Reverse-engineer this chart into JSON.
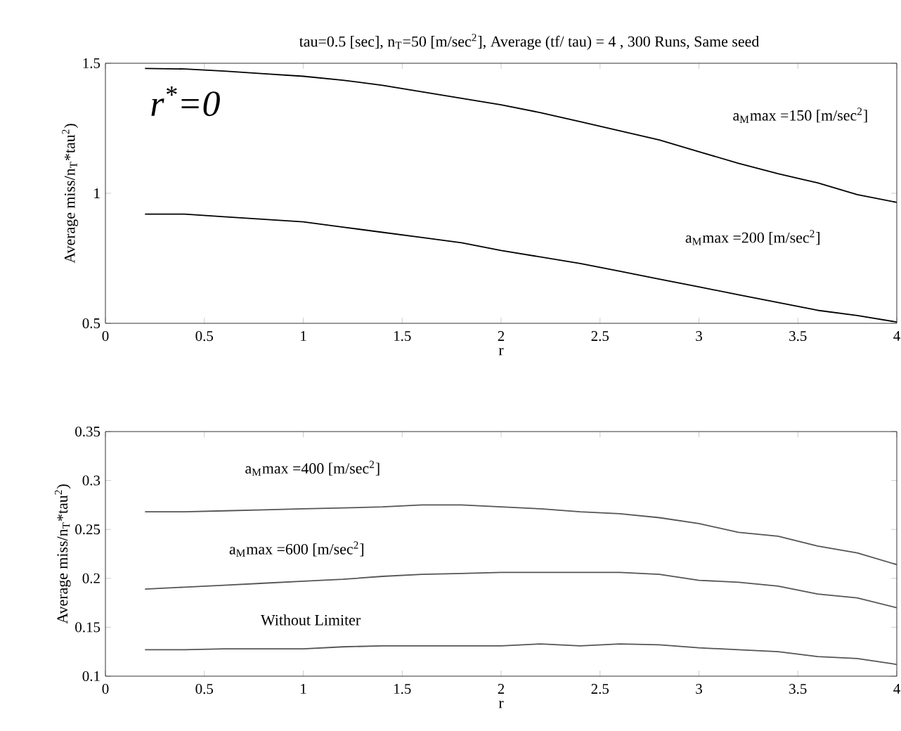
{
  "chart_data": [
    {
      "type": "line",
      "title": "tau=0.5 [sec], n$_{T}$=50 [m/sec$^{2}$], Average (tf/ tau) = 4 , 300 Runs, Same seed",
      "xlabel": "r",
      "ylabel": "Average miss/n$_{T}$*tau$^{2}$)",
      "x": [
        0.2,
        0.4,
        0.6,
        0.8,
        1.0,
        1.2,
        1.4,
        1.6,
        1.8,
        2.0,
        2.2,
        2.4,
        2.6,
        2.8,
        3.0,
        3.2,
        3.4,
        3.6,
        3.8,
        4.0
      ],
      "xlim": [
        0,
        4
      ],
      "xticks": [
        0,
        0.5,
        1,
        1.5,
        2,
        2.5,
        3,
        3.5,
        4
      ],
      "ylim": [
        0.5,
        1.5
      ],
      "yticks": [
        0.5,
        1,
        1.5
      ],
      "annotations": [
        "r$^{*}$=0"
      ],
      "series": [
        {
          "name": "a$_{M}$max =150 [m/sec$^{2}$]",
          "color": "#000000",
          "values": [
            1.48,
            1.478,
            1.47,
            1.46,
            1.45,
            1.435,
            1.415,
            1.39,
            1.365,
            1.34,
            1.31,
            1.275,
            1.24,
            1.205,
            1.16,
            1.115,
            1.075,
            1.04,
            0.995,
            0.965
          ]
        },
        {
          "name": "a$_{M}$max =200 [m/sec$^{2}$]",
          "color": "#000000",
          "values": [
            0.92,
            0.92,
            0.91,
            0.9,
            0.89,
            0.87,
            0.85,
            0.83,
            0.81,
            0.78,
            0.755,
            0.73,
            0.7,
            0.67,
            0.64,
            0.61,
            0.58,
            0.55,
            0.53,
            0.505
          ]
        }
      ]
    },
    {
      "type": "line",
      "xlabel": "r",
      "ylabel": "Average miss/n$_{T}$*tau$^{2}$)",
      "x": [
        0.2,
        0.4,
        0.6,
        0.8,
        1.0,
        1.2,
        1.4,
        1.6,
        1.8,
        2.0,
        2.2,
        2.4,
        2.6,
        2.8,
        3.0,
        3.2,
        3.4,
        3.6,
        3.8,
        4.0
      ],
      "xlim": [
        0,
        4
      ],
      "xticks": [
        0,
        0.5,
        1,
        1.5,
        2,
        2.5,
        3,
        3.5,
        4
      ],
      "ylim": [
        0.1,
        0.35
      ],
      "yticks": [
        0.1,
        0.15,
        0.2,
        0.25,
        0.3,
        0.35
      ],
      "series": [
        {
          "name": "a$_{M}$max =400 [m/sec$^{2}$]",
          "color": "#555555",
          "values": [
            0.268,
            0.268,
            0.269,
            0.27,
            0.271,
            0.272,
            0.273,
            0.275,
            0.275,
            0.273,
            0.271,
            0.268,
            0.266,
            0.262,
            0.256,
            0.247,
            0.243,
            0.233,
            0.226,
            0.214
          ]
        },
        {
          "name": "a$_{M}$max =600 [m/sec$^{2}$]",
          "color": "#555555",
          "values": [
            0.189,
            0.191,
            0.193,
            0.195,
            0.197,
            0.199,
            0.202,
            0.204,
            0.205,
            0.206,
            0.206,
            0.206,
            0.206,
            0.204,
            0.198,
            0.196,
            0.192,
            0.184,
            0.18,
            0.17
          ]
        },
        {
          "name": "Without Limiter",
          "color": "#555555",
          "values": [
            0.127,
            0.127,
            0.128,
            0.128,
            0.128,
            0.13,
            0.131,
            0.131,
            0.131,
            0.131,
            0.133,
            0.131,
            0.133,
            0.132,
            0.129,
            0.127,
            0.125,
            0.12,
            0.118,
            0.112
          ]
        }
      ]
    }
  ]
}
